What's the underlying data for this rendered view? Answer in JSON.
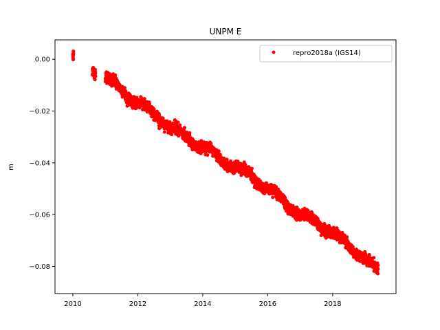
{
  "chart_data": {
    "type": "scatter",
    "title": "UNPM E",
    "xlabel": "",
    "ylabel": "m",
    "xlim": [
      2009.45,
      2019.95
    ],
    "ylim": [
      -0.0905,
      0.0075
    ],
    "xticks": [
      2010,
      2012,
      2014,
      2016,
      2018
    ],
    "xtick_labels": [
      "2010",
      "2012",
      "2014",
      "2016",
      "2018"
    ],
    "yticks": [
      0.0,
      -0.02,
      -0.04,
      -0.06,
      -0.08
    ],
    "ytick_labels": [
      "0.00",
      "−0.02",
      "−0.04",
      "−0.06",
      "−0.08"
    ],
    "grid": false,
    "legend_position": "top-right",
    "series": [
      {
        "name": "repro2018a (IGS14)",
        "color": "#ff0000",
        "marker": "dot",
        "trend": [
          [
            2010.0,
            0.0015
          ],
          [
            2010.6,
            -0.004
          ],
          [
            2011.0,
            -0.007
          ],
          [
            2011.5,
            -0.012
          ],
          [
            2012.0,
            -0.017
          ],
          [
            2012.5,
            -0.021
          ],
          [
            2013.0,
            -0.026
          ],
          [
            2013.5,
            -0.03
          ],
          [
            2014.0,
            -0.034
          ],
          [
            2014.5,
            -0.038
          ],
          [
            2015.0,
            -0.042
          ],
          [
            2015.5,
            -0.045
          ],
          [
            2016.0,
            -0.05
          ],
          [
            2016.5,
            -0.055
          ],
          [
            2017.0,
            -0.06
          ],
          [
            2017.5,
            -0.063
          ],
          [
            2018.0,
            -0.067
          ],
          [
            2018.5,
            -0.072
          ],
          [
            2019.0,
            -0.077
          ],
          [
            2019.4,
            -0.082
          ]
        ],
        "segments": [
          {
            "x": [
              2010.0,
              2010.02
            ],
            "density": 10,
            "spread": 0.0012
          },
          {
            "x": [
              2010.6,
              2010.7
            ],
            "density": 30,
            "spread": 0.0015
          },
          {
            "x": [
              2011.0,
              2019.4
            ],
            "density": 3000,
            "spread": 0.0015
          }
        ]
      }
    ]
  }
}
